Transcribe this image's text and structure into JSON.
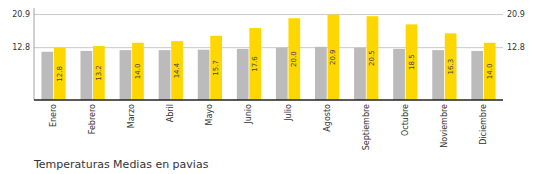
{
  "chart_data": {
    "type": "bar",
    "title": "Temperaturas Medias en pavias",
    "categories": [
      "Enero",
      "Febrero",
      "Marzo",
      "Abril",
      "Mayo",
      "Junio",
      "Julio",
      "Agosto",
      "Septiembre",
      "Octubre",
      "Noviembre",
      "Diciembre"
    ],
    "series": [
      {
        "color": "#BBBBBB",
        "values": [
          11.8,
          12.0,
          12.2,
          12.2,
          12.3,
          12.5,
          12.8,
          13.0,
          12.8,
          12.5,
          12.2,
          12.0
        ]
      },
      {
        "color": "#FFD700",
        "values": [
          12.8,
          13.2,
          14.0,
          14.4,
          15.7,
          17.6,
          20.0,
          20.9,
          20.5,
          18.5,
          16.3,
          14.0
        ],
        "data_labels": true,
        "value_labels": [
          "12.8",
          "13.2",
          "14.0",
          "14.4",
          "15.7",
          "17.6",
          "20.0",
          "20.9",
          "20.5",
          "18.5",
          "16.3",
          "14.0"
        ]
      }
    ],
    "ylim": [
      0,
      22.5
    ],
    "yticks": [
      12.8,
      20.9
    ],
    "grid": true
  }
}
